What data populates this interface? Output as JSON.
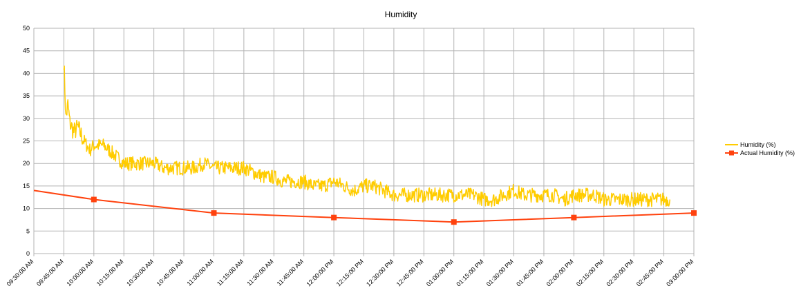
{
  "chart_data": {
    "type": "line",
    "title": "Humidity",
    "xlabel": "",
    "ylabel": "",
    "ylim": [
      0,
      50
    ],
    "yticks": [
      0,
      5,
      10,
      15,
      20,
      25,
      30,
      35,
      40,
      45,
      50
    ],
    "xlim": [
      "09:30:00 AM",
      "03:00:00 PM"
    ],
    "xticks": [
      "09:30:00 AM",
      "09:45:00 AM",
      "10:00:00 AM",
      "10:15:00 AM",
      "10:30:00 AM",
      "10:45:00 AM",
      "11:00:00 AM",
      "11:15:00 AM",
      "11:30:00 AM",
      "11:45:00 AM",
      "12:00:00 PM",
      "12:15:00 PM",
      "12:30:00 PM",
      "12:45:00 PM",
      "01:00:00 PM",
      "01:15:00 PM",
      "01:30:00 PM",
      "01:45:00 PM",
      "02:00:00 PM",
      "02:15:00 PM",
      "02:30:00 PM",
      "02:45:00 PM",
      "03:00:00 PM"
    ],
    "grid": true,
    "legend_position": "right",
    "series": [
      {
        "name": "Humidity (%)",
        "color": "#ffcc00",
        "x": [
          "09:45:00 AM",
          "09:46:00 AM",
          "09:47:00 AM",
          "09:48:00 AM",
          "09:50:00 AM",
          "09:52:00 AM",
          "09:55:00 AM",
          "09:58:00 AM",
          "10:00:00 AM",
          "10:05:00 AM",
          "10:10:00 AM",
          "10:15:00 AM",
          "10:20:00 AM",
          "10:25:00 AM",
          "10:30:00 AM",
          "10:35:00 AM",
          "10:40:00 AM",
          "10:45:00 AM",
          "10:50:00 AM",
          "10:55:00 AM",
          "11:00:00 AM",
          "11:05:00 AM",
          "11:10:00 AM",
          "11:15:00 AM",
          "11:20:00 AM",
          "11:25:00 AM",
          "11:30:00 AM",
          "11:35:00 AM",
          "11:40:00 AM",
          "11:45:00 AM",
          "11:50:00 AM",
          "11:55:00 AM",
          "12:00:00 PM",
          "12:05:00 PM",
          "12:10:00 PM",
          "12:15:00 PM",
          "12:20:00 PM",
          "12:25:00 PM",
          "12:30:00 PM",
          "12:35:00 PM",
          "12:40:00 PM",
          "12:45:00 PM",
          "12:50:00 PM",
          "12:55:00 PM",
          "01:00:00 PM",
          "01:05:00 PM",
          "01:10:00 PM",
          "01:15:00 PM",
          "01:20:00 PM",
          "01:25:00 PM",
          "01:30:00 PM",
          "01:35:00 PM",
          "01:40:00 PM",
          "01:45:00 PM",
          "01:50:00 PM",
          "01:55:00 PM",
          "02:00:00 PM",
          "02:05:00 PM",
          "02:10:00 PM",
          "02:15:00 PM",
          "02:20:00 PM",
          "02:25:00 PM",
          "02:30:00 PM",
          "02:35:00 PM",
          "02:40:00 PM",
          "02:45:00 PM",
          "02:48:00 PM"
        ],
        "values": [
          43,
          30,
          33,
          29,
          27,
          28,
          25,
          23,
          24,
          24,
          22,
          20,
          20,
          20,
          20,
          19,
          19,
          19,
          19,
          20,
          19,
          19,
          19,
          19,
          18,
          17,
          17,
          16,
          16,
          16,
          15,
          15,
          16,
          15,
          14,
          15,
          15,
          14,
          13,
          13,
          13,
          13,
          13,
          13,
          13,
          13,
          13,
          12,
          12,
          13,
          14,
          13,
          13,
          13,
          13,
          12,
          13,
          13,
          13,
          12,
          12,
          12,
          12,
          12,
          12,
          12,
          12
        ]
      },
      {
        "name": "Actual Humidity (%)",
        "color": "#ff420e",
        "x": [
          "09:30:00 AM",
          "10:00:00 AM",
          "11:00:00 AM",
          "12:00:00 PM",
          "01:00:00 PM",
          "02:00:00 PM",
          "03:00:00 PM"
        ],
        "values": [
          14,
          12,
          9,
          8,
          7,
          8,
          9
        ],
        "markers": [
          false,
          true,
          true,
          true,
          true,
          true,
          true
        ]
      }
    ]
  }
}
